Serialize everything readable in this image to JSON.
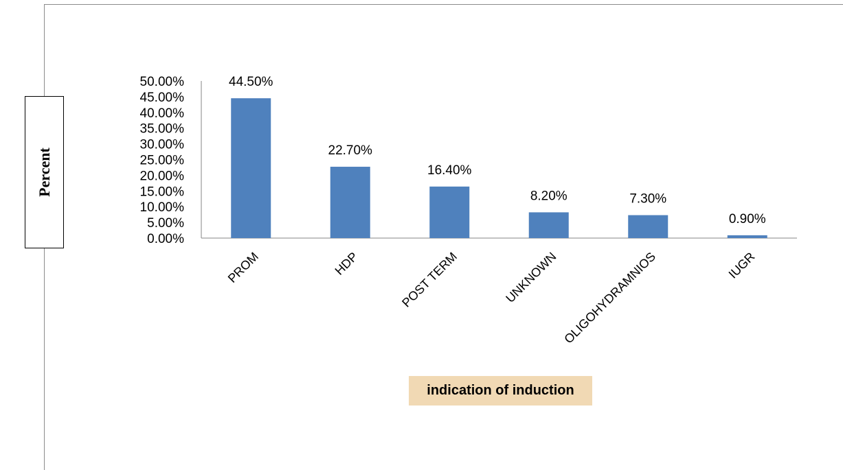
{
  "chart_data": {
    "type": "bar",
    "title": "",
    "xlabel": "indication of induction",
    "ylabel": "Percent",
    "categories": [
      "PROM",
      "HDP",
      "POST TERM",
      "UNKNOWN",
      "OLIGOHYDRAMNIOS",
      "IUGR"
    ],
    "values": [
      44.5,
      22.7,
      16.4,
      8.2,
      7.3,
      0.9
    ],
    "data_labels": [
      "44.50%",
      "22.70%",
      "16.40%",
      "8.20%",
      "7.30%",
      "0.90%"
    ],
    "ylim": [
      0,
      50
    ],
    "y_ticks": [
      0,
      5,
      10,
      15,
      20,
      25,
      30,
      35,
      40,
      45,
      50
    ],
    "y_tick_labels": [
      "0.00%",
      "5.00%",
      "10.00%",
      "15.00%",
      "20.00%",
      "25.00%",
      "30.00%",
      "35.00%",
      "40.00%",
      "45.00%",
      "50.00%"
    ],
    "grid": false,
    "legend": "none",
    "bar_color": "#4f81bd",
    "xlabel_background": "#f1d9b4"
  }
}
